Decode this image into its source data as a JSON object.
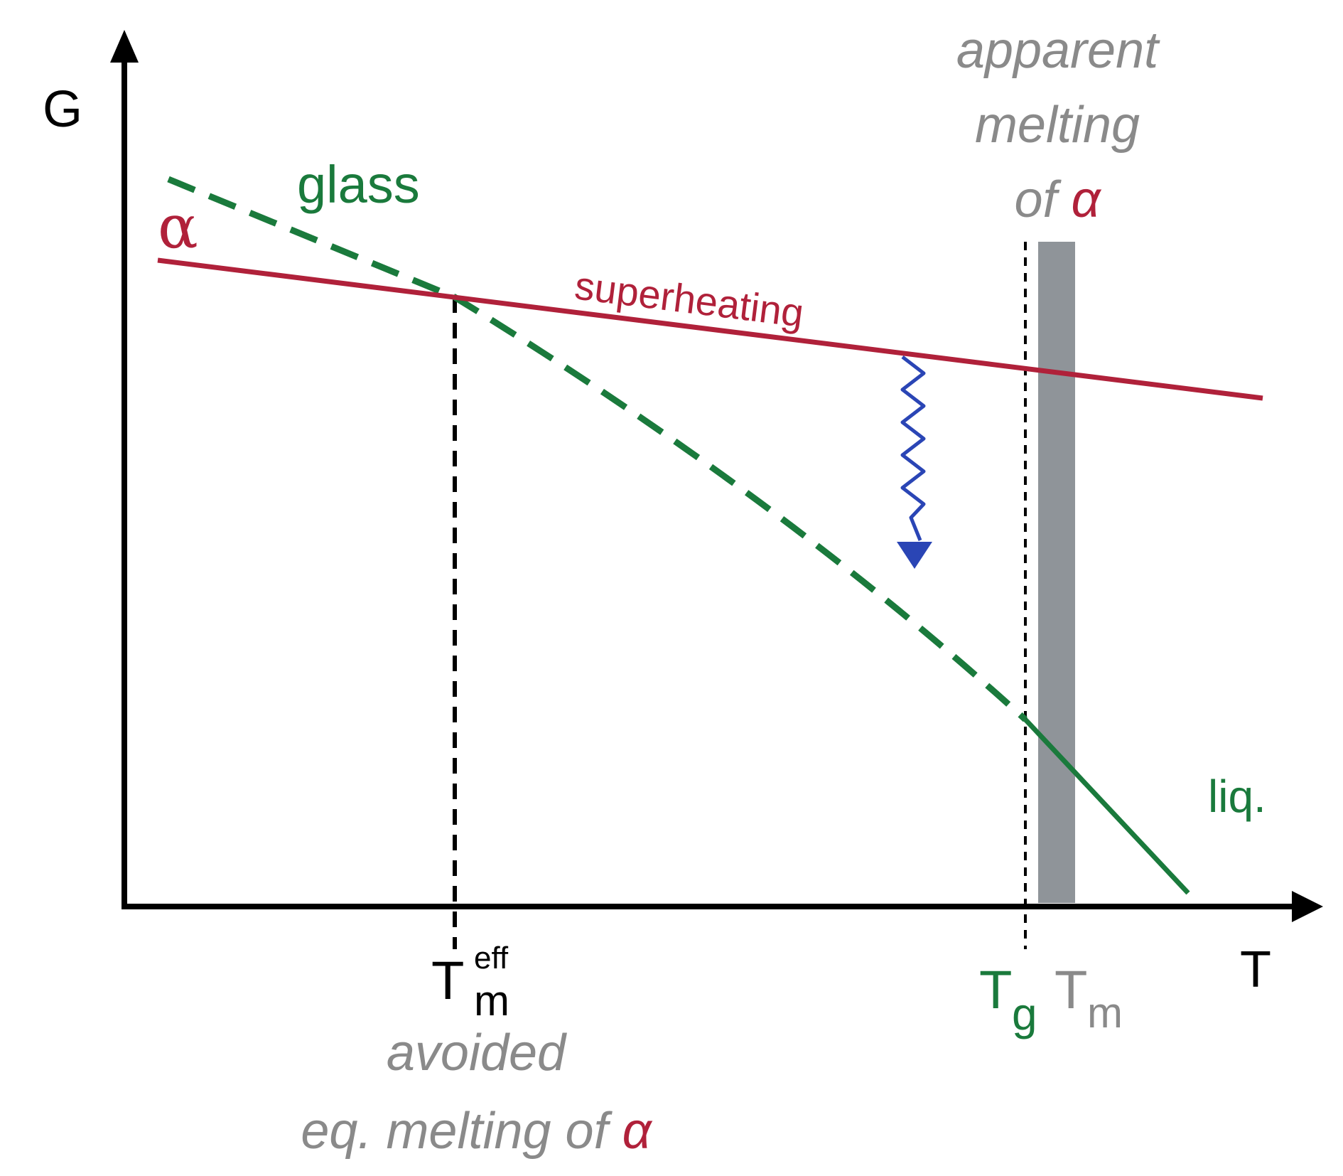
{
  "axes": {
    "y_label": "G",
    "x_label": "T"
  },
  "curves": {
    "alpha": "α",
    "glass": "glass",
    "liquid": "liq.",
    "superheating": "superheating"
  },
  "ticks": {
    "tm_eff_main": "T",
    "tm_eff_sup": "eff",
    "tm_eff_sub": "m",
    "tg_main": "T",
    "tg_sub": "g",
    "tm_main": "T",
    "tm_sub": "m"
  },
  "annotations": {
    "apparent_line1": "apparent",
    "apparent_line2": "melting",
    "apparent_of": "of ",
    "apparent_alpha": "α",
    "avoided_line1": "avoided",
    "avoided_line2": "eq. melting of ",
    "avoided_alpha": "α"
  },
  "colors": {
    "axis": "#000000",
    "alpha_line": "#b0213a",
    "glass_line": "#1a7a3c",
    "relaxation_arrow": "#2a45b5",
    "melting_band": "#8f9499",
    "annotation_gray": "#8a8a8a",
    "guide_dashed": "#000000"
  },
  "icons": {
    "relaxation_arrow": "wavy-down-arrow-icon"
  }
}
